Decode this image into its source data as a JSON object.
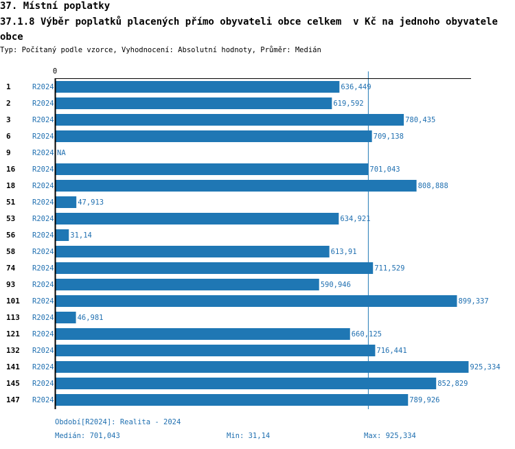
{
  "header": {
    "section_title": "37. Místní poplatky",
    "indicator_title": "37.1.8 Výběr poplatků placených přímo obyvateli obce celkem  v Kč na jednoho obyvatele obce",
    "meta": "Typ: Počítaný podle vzorce, Vyhodnocení: Absolutní hodnoty, Průměr: Medián"
  },
  "chart_data": {
    "type": "bar",
    "orientation": "horizontal",
    "x_tick_label": "0",
    "xlim": [
      0,
      940
    ],
    "median_line": 701.043,
    "series_label": "R2024",
    "categories": [
      "1",
      "2",
      "3",
      "6",
      "9",
      "16",
      "18",
      "51",
      "53",
      "56",
      "58",
      "74",
      "93",
      "101",
      "113",
      "121",
      "132",
      "141",
      "145",
      "147"
    ],
    "values": [
      636.449,
      619.592,
      780.435,
      709.138,
      null,
      701.043,
      808.888,
      47.913,
      634.921,
      31.14,
      613.91,
      711.529,
      590.946,
      899.337,
      46.981,
      660.125,
      716.441,
      925.334,
      852.829,
      789.926
    ],
    "value_labels": [
      "636,449",
      "619,592",
      "780,435",
      "709,138",
      "NA",
      "701,043",
      "808,888",
      "47,913",
      "634,921",
      "31,14",
      "613,91",
      "711,529",
      "590,946",
      "899,337",
      "46,981",
      "660,125",
      "716,441",
      "925,334",
      "852,829",
      "789,926"
    ],
    "colors": {
      "bar": "#1f77b4",
      "label": "#1f6fb0",
      "axis": "#000000"
    }
  },
  "footer": {
    "period": "Období[R2024]: Realita - 2024",
    "median": "Medián: 701,043",
    "min": "Min: 31,14",
    "max": "Max: 925,334"
  }
}
